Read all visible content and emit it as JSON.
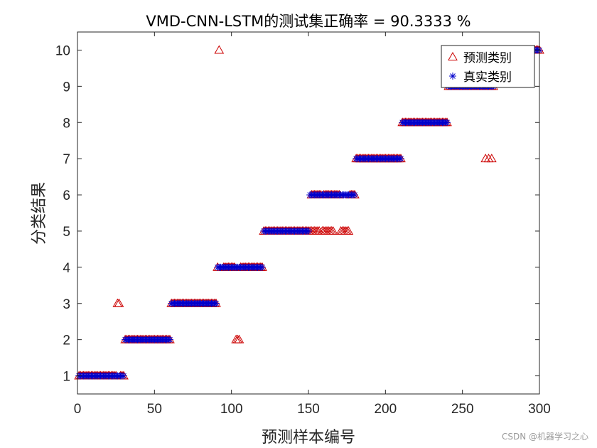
{
  "chart_data": {
    "type": "scatter",
    "title": "VMD-CNN-LSTM的测试集正确率 = 90.3333 %",
    "xlabel": "预测样本编号",
    "ylabel": "分类结果",
    "xlim": [
      0,
      300
    ],
    "ylim": [
      0.5,
      10.5
    ],
    "xticks": [
      0,
      50,
      100,
      150,
      200,
      250,
      300
    ],
    "yticks": [
      1,
      2,
      3,
      4,
      5,
      6,
      7,
      8,
      9,
      10
    ],
    "grid": false,
    "legend_position": "top-right",
    "series": [
      {
        "name": "预测类别",
        "marker": "triangle",
        "color": "#cc0000",
        "segments": [
          {
            "from": 1,
            "to": 25,
            "y": 1
          },
          {
            "from": 28,
            "to": 30,
            "y": 1
          },
          {
            "from": 31,
            "to": 60,
            "y": 2
          },
          {
            "from": 61,
            "to": 90,
            "y": 3
          },
          {
            "from": 91,
            "to": 91,
            "y": 4
          },
          {
            "from": 95,
            "to": 102,
            "y": 4
          },
          {
            "from": 106,
            "to": 120,
            "y": 4
          },
          {
            "from": 121,
            "to": 150,
            "y": 5
          },
          {
            "from": 151,
            "to": 157,
            "y": 5
          },
          {
            "from": 159,
            "to": 166,
            "y": 5
          },
          {
            "from": 171,
            "to": 176,
            "y": 5
          },
          {
            "from": 152,
            "to": 158,
            "y": 6
          },
          {
            "from": 160,
            "to": 170,
            "y": 6
          },
          {
            "from": 177,
            "to": 180,
            "y": 6
          },
          {
            "from": 181,
            "to": 210,
            "y": 7
          },
          {
            "from": 211,
            "to": 240,
            "y": 8
          },
          {
            "from": 241,
            "to": 264,
            "y": 9
          },
          {
            "from": 266,
            "to": 270,
            "y": 9
          },
          {
            "from": 271,
            "to": 300,
            "y": 10
          }
        ],
        "outliers": [
          {
            "x": 26,
            "y": 3
          },
          {
            "x": 27,
            "y": 3
          },
          {
            "x": 92,
            "y": 10
          },
          {
            "x": 103,
            "y": 2
          },
          {
            "x": 104,
            "y": 2
          },
          {
            "x": 105,
            "y": 2
          },
          {
            "x": 265,
            "y": 7
          },
          {
            "x": 267,
            "y": 7
          },
          {
            "x": 269,
            "y": 7
          }
        ]
      },
      {
        "name": "真实类别",
        "marker": "asterisk",
        "color": "#0000cc",
        "segments": [
          {
            "from": 1,
            "to": 30,
            "y": 1
          },
          {
            "from": 31,
            "to": 60,
            "y": 2
          },
          {
            "from": 61,
            "to": 90,
            "y": 3
          },
          {
            "from": 91,
            "to": 120,
            "y": 4
          },
          {
            "from": 121,
            "to": 150,
            "y": 5
          },
          {
            "from": 151,
            "to": 180,
            "y": 6
          },
          {
            "from": 181,
            "to": 210,
            "y": 7
          },
          {
            "from": 211,
            "to": 240,
            "y": 8
          },
          {
            "from": 241,
            "to": 270,
            "y": 9
          },
          {
            "from": 271,
            "to": 300,
            "y": 10
          }
        ]
      }
    ]
  },
  "watermark": "CSDN @机器学习之心"
}
